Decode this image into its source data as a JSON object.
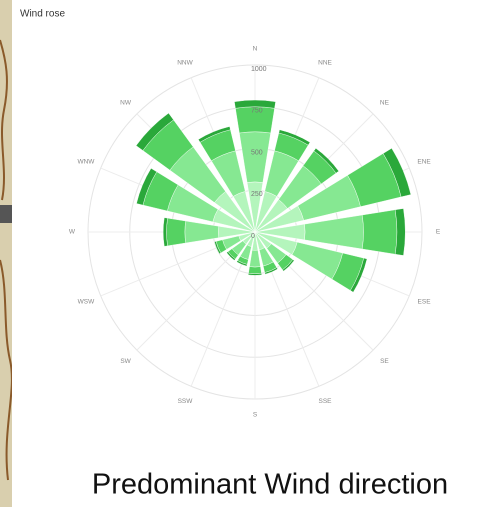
{
  "chart_data": {
    "type": "windrose",
    "title": "Wind rose",
    "caption": "Predominant Wind direction",
    "categories": [
      "N",
      "NNE",
      "NE",
      "ENE",
      "E",
      "ESE",
      "SE",
      "SSE",
      "S",
      "SSW",
      "SW",
      "WSW",
      "W",
      "WNW",
      "NW",
      "NNW"
    ],
    "series": [
      {
        "color": "#b4f5bc",
        "values": [
          300,
          250,
          240,
          300,
          300,
          260,
          120,
          110,
          110,
          90,
          90,
          100,
          220,
          260,
          300,
          250
        ]
      },
      {
        "color": "#86e892",
        "values": [
          300,
          250,
          250,
          350,
          350,
          280,
          110,
          100,
          100,
          80,
          80,
          100,
          200,
          280,
          330,
          250
        ]
      },
      {
        "color": "#55d262",
        "values": [
          150,
          110,
          110,
          250,
          200,
          130,
          50,
          40,
          40,
          30,
          30,
          40,
          110,
          150,
          200,
          130
        ]
      },
      {
        "color": "#2aa83a",
        "values": [
          40,
          20,
          20,
          60,
          50,
          20,
          10,
          10,
          10,
          10,
          10,
          10,
          20,
          40,
          50,
          20
        ]
      }
    ],
    "rlim": [
      0,
      1000
    ],
    "rticks": [
      0,
      250,
      500,
      750,
      1000
    ],
    "grid": true
  }
}
